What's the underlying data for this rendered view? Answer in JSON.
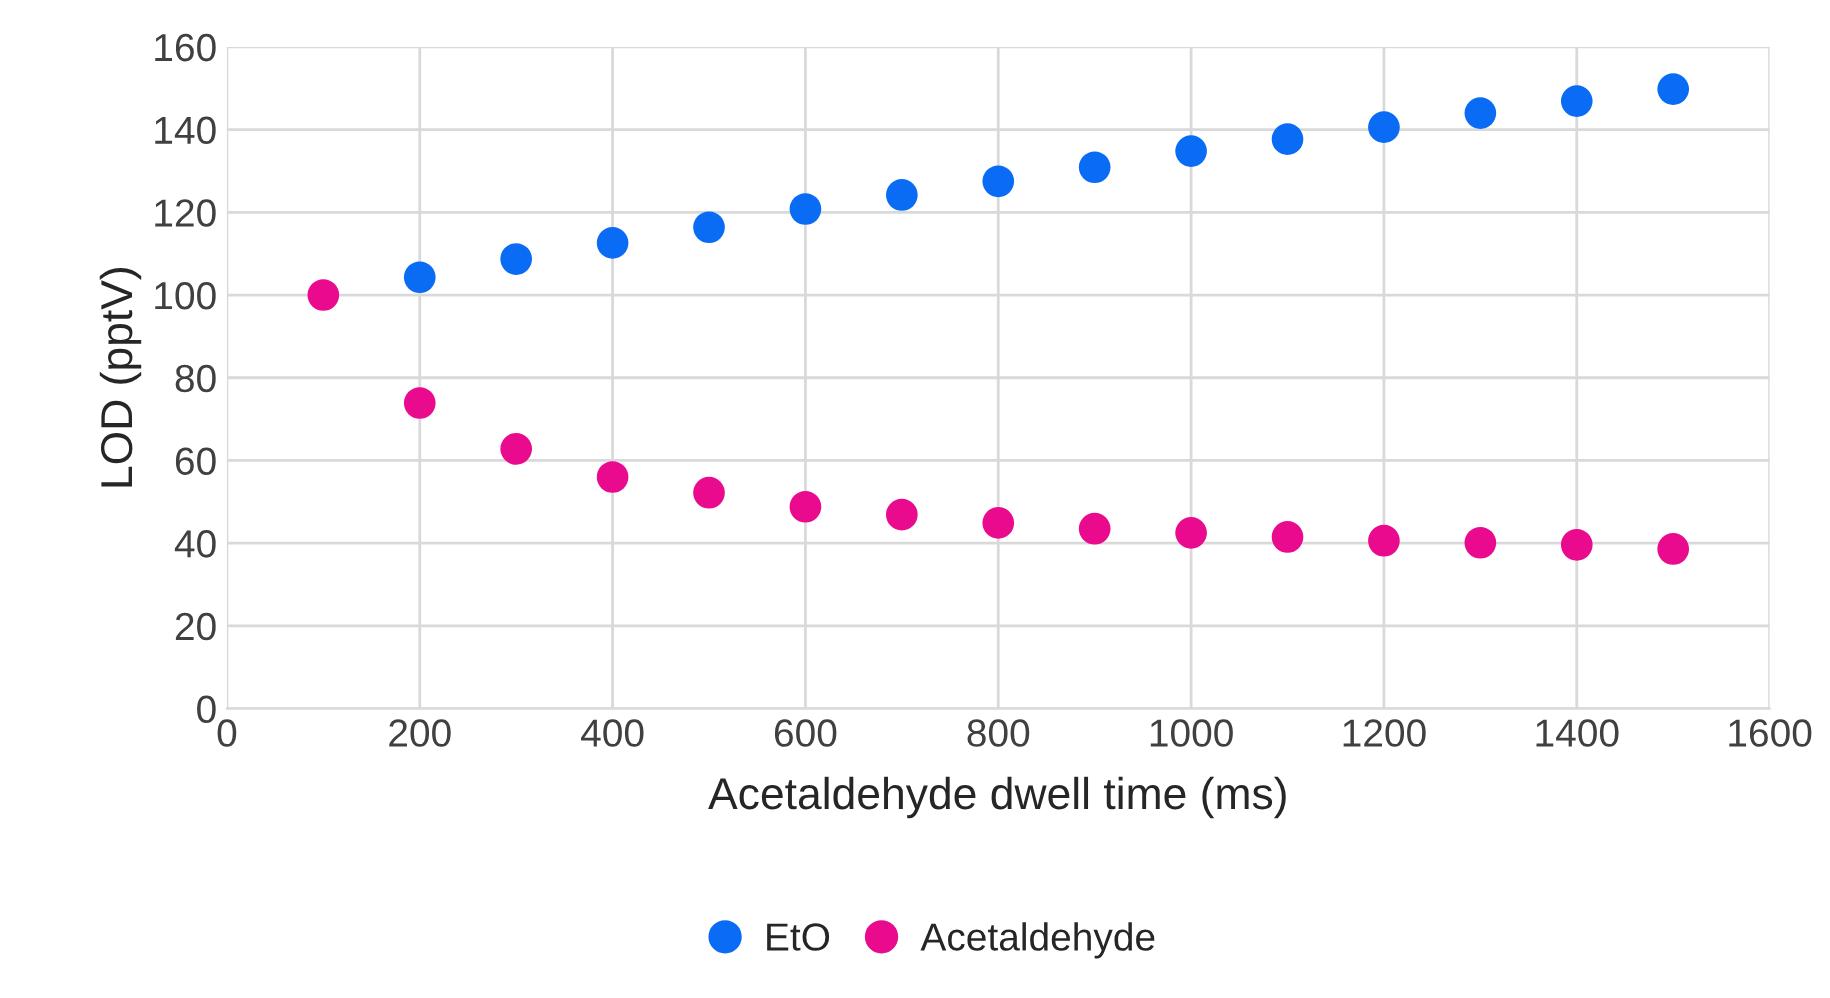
{
  "chart_data": {
    "type": "scatter",
    "xlabel": "Acetaldehyde dwell time (ms)",
    "ylabel": "LOD (pptV)",
    "x": [
      100,
      200,
      300,
      400,
      500,
      600,
      700,
      800,
      900,
      1000,
      1100,
      1200,
      1300,
      1400,
      1500
    ],
    "series": [
      {
        "name": "EtO",
        "color": "#0a6cf5",
        "values": [
          null,
          104.3,
          108.7,
          112.6,
          116.4,
          120.8,
          124.2,
          127.5,
          130.9,
          134.8,
          137.7,
          140.6,
          144,
          146.9,
          149.8
        ]
      },
      {
        "name": "Acetaldehyde",
        "color": "#ea0a8e",
        "values": [
          100,
          73.9,
          62.8,
          56,
          52.2,
          48.8,
          46.9,
          44.9,
          43.5,
          42.5,
          41.5,
          40.6,
          40.1,
          39.6,
          38.6
        ]
      }
    ],
    "xlim": [
      0,
      1600
    ],
    "xticks": [
      0,
      200,
      400,
      600,
      800,
      1000,
      1200,
      1400,
      1600
    ],
    "ylim": [
      0,
      160
    ],
    "yticks": [
      0,
      20,
      40,
      60,
      80,
      100,
      120,
      140,
      160
    ],
    "grid": true,
    "legend": "bottom",
    "marker": "circle"
  }
}
